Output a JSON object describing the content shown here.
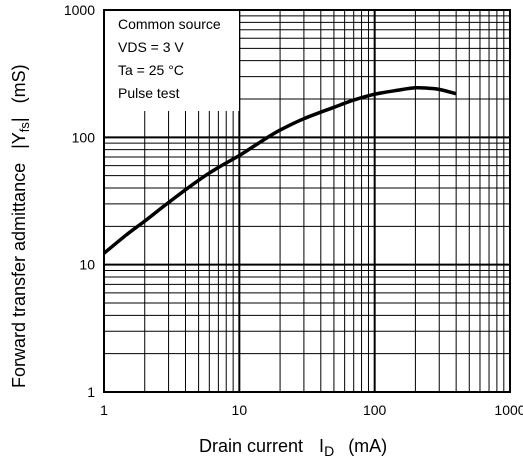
{
  "chart_data": {
    "type": "line",
    "x_scale": "log",
    "y_scale": "log",
    "xlim": [
      1,
      1000
    ],
    "ylim": [
      1,
      1000
    ],
    "grid": true,
    "x_ticks": [
      "1",
      "10",
      "100",
      "1000"
    ],
    "y_ticks": [
      "1",
      "10",
      "100",
      "1000"
    ],
    "xlabel": {
      "prefix": "Drain current",
      "symbol": "I",
      "subscript": "D",
      "unit": "(mA)"
    },
    "ylabel": {
      "prefix": "Forward transfer admittance",
      "symbol": "|Y",
      "subscript": "fs",
      "suffix": "|",
      "unit": "(mS)"
    },
    "annotation_lines": [
      "Common source",
      "VDS = 3 V",
      "Ta = 25 °C",
      "Pulse test"
    ],
    "series": [
      {
        "x": [
          1,
          1.5,
          2,
          3,
          5,
          7,
          10,
          15,
          20,
          30,
          50,
          70,
          100,
          150,
          200,
          250,
          300,
          400
        ],
        "y": [
          12.3,
          17.5,
          22,
          30.8,
          46,
          58,
          72,
          95,
          114,
          140,
          172,
          196,
          218,
          235,
          245,
          243,
          238,
          220
        ]
      }
    ]
  }
}
